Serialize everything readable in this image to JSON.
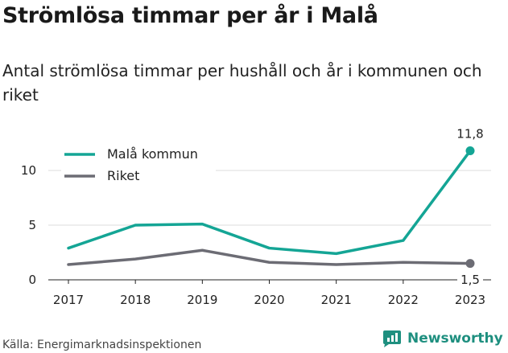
{
  "title": "Strömlösa timmar per år i Malå",
  "subtitle": "Antal strömlösa timmar per hushåll och år i kommunen och riket",
  "source": "Källa: Energimarknadsinspektionen",
  "brand": "Newsworthy",
  "colors": {
    "mala": "#14a595",
    "riket": "#6c6c74",
    "grid": "#dddddd",
    "brand": "#1e8f7f"
  },
  "chart_data": {
    "type": "line",
    "x": [
      "2017",
      "2018",
      "2019",
      "2020",
      "2021",
      "2022",
      "2023"
    ],
    "yticks": [
      0,
      5,
      10
    ],
    "ylim": [
      0,
      12.5
    ],
    "grid": true,
    "legend": "top-left",
    "series": [
      {
        "name": "Malå kommun",
        "values": [
          2.9,
          5.0,
          5.1,
          2.9,
          2.4,
          3.6,
          11.8
        ],
        "end_label": "11,8"
      },
      {
        "name": "Riket",
        "values": [
          1.4,
          1.9,
          2.7,
          1.6,
          1.4,
          1.6,
          1.5
        ],
        "end_label": "1,5"
      }
    ]
  }
}
